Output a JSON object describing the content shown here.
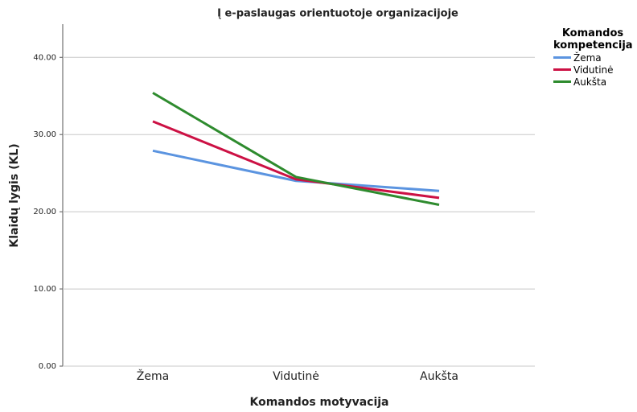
{
  "chart_data": {
    "type": "line",
    "title": "Į e-paslaugas orientuotoje organizacijoje",
    "x_label": "Komandos motyvacija",
    "y_label": "Klaidų lygis (KL)",
    "legend_title": "Komandos kompetencija",
    "legend_position": "right",
    "categories": [
      "Žema",
      "Vidutinė",
      "Aukšta"
    ],
    "series": [
      {
        "name": "Žema",
        "color": "#5b94e0",
        "values": [
          27.9,
          24.0,
          22.7
        ]
      },
      {
        "name": "Vidutinė",
        "color": "#cc1144",
        "values": [
          31.7,
          24.2,
          21.8
        ]
      },
      {
        "name": "Aukšta",
        "color": "#2e8b2e",
        "values": [
          35.4,
          24.5,
          20.9
        ]
      }
    ],
    "ylim": [
      0,
      44.3
    ],
    "yticks": [
      {
        "value": 0,
        "label": "0.00"
      },
      {
        "value": 10,
        "label": "10.00"
      },
      {
        "value": 20,
        "label": "20.00"
      },
      {
        "value": 30,
        "label": "30.00"
      },
      {
        "value": 40,
        "label": "40.00"
      }
    ],
    "grid": true
  }
}
